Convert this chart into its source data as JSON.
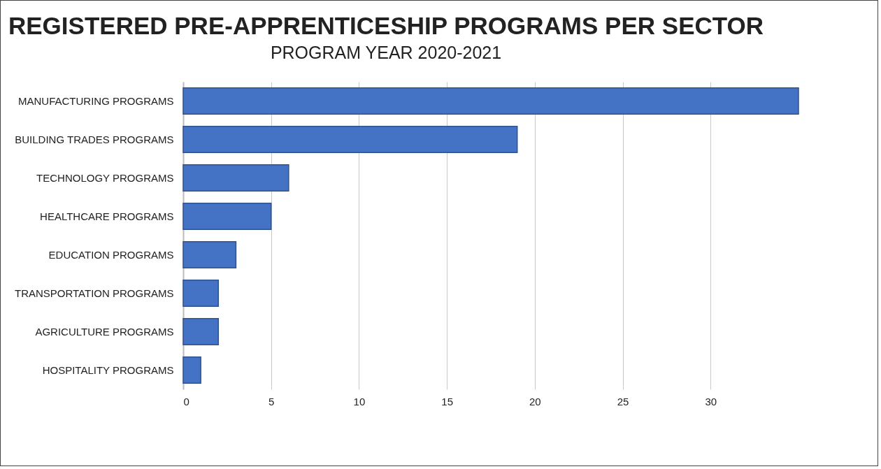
{
  "chart_data": {
    "type": "bar",
    "orientation": "horizontal",
    "title": "REGISTERED PRE-APPRENTICESHIP PROGRAMS PER SECTOR",
    "subtitle": "PROGRAM YEAR 2020-2021",
    "categories": [
      "MANUFACTURING PROGRAMS",
      "BUILDING TRADES PROGRAMS",
      "TECHNOLOGY PROGRAMS",
      "HEALTHCARE PROGRAMS",
      "EDUCATION PROGRAMS",
      "TRANSPORTATION PROGRAMS",
      "AGRICULTURE PROGRAMS",
      "HOSPITALITY PROGRAMS"
    ],
    "values": [
      35,
      19,
      6,
      5,
      3,
      2,
      2,
      1
    ],
    "color": "#4472c4",
    "xlim": [
      0,
      35
    ],
    "xticks": [
      0,
      5,
      10,
      15,
      20,
      25,
      30
    ],
    "grid": "x"
  }
}
